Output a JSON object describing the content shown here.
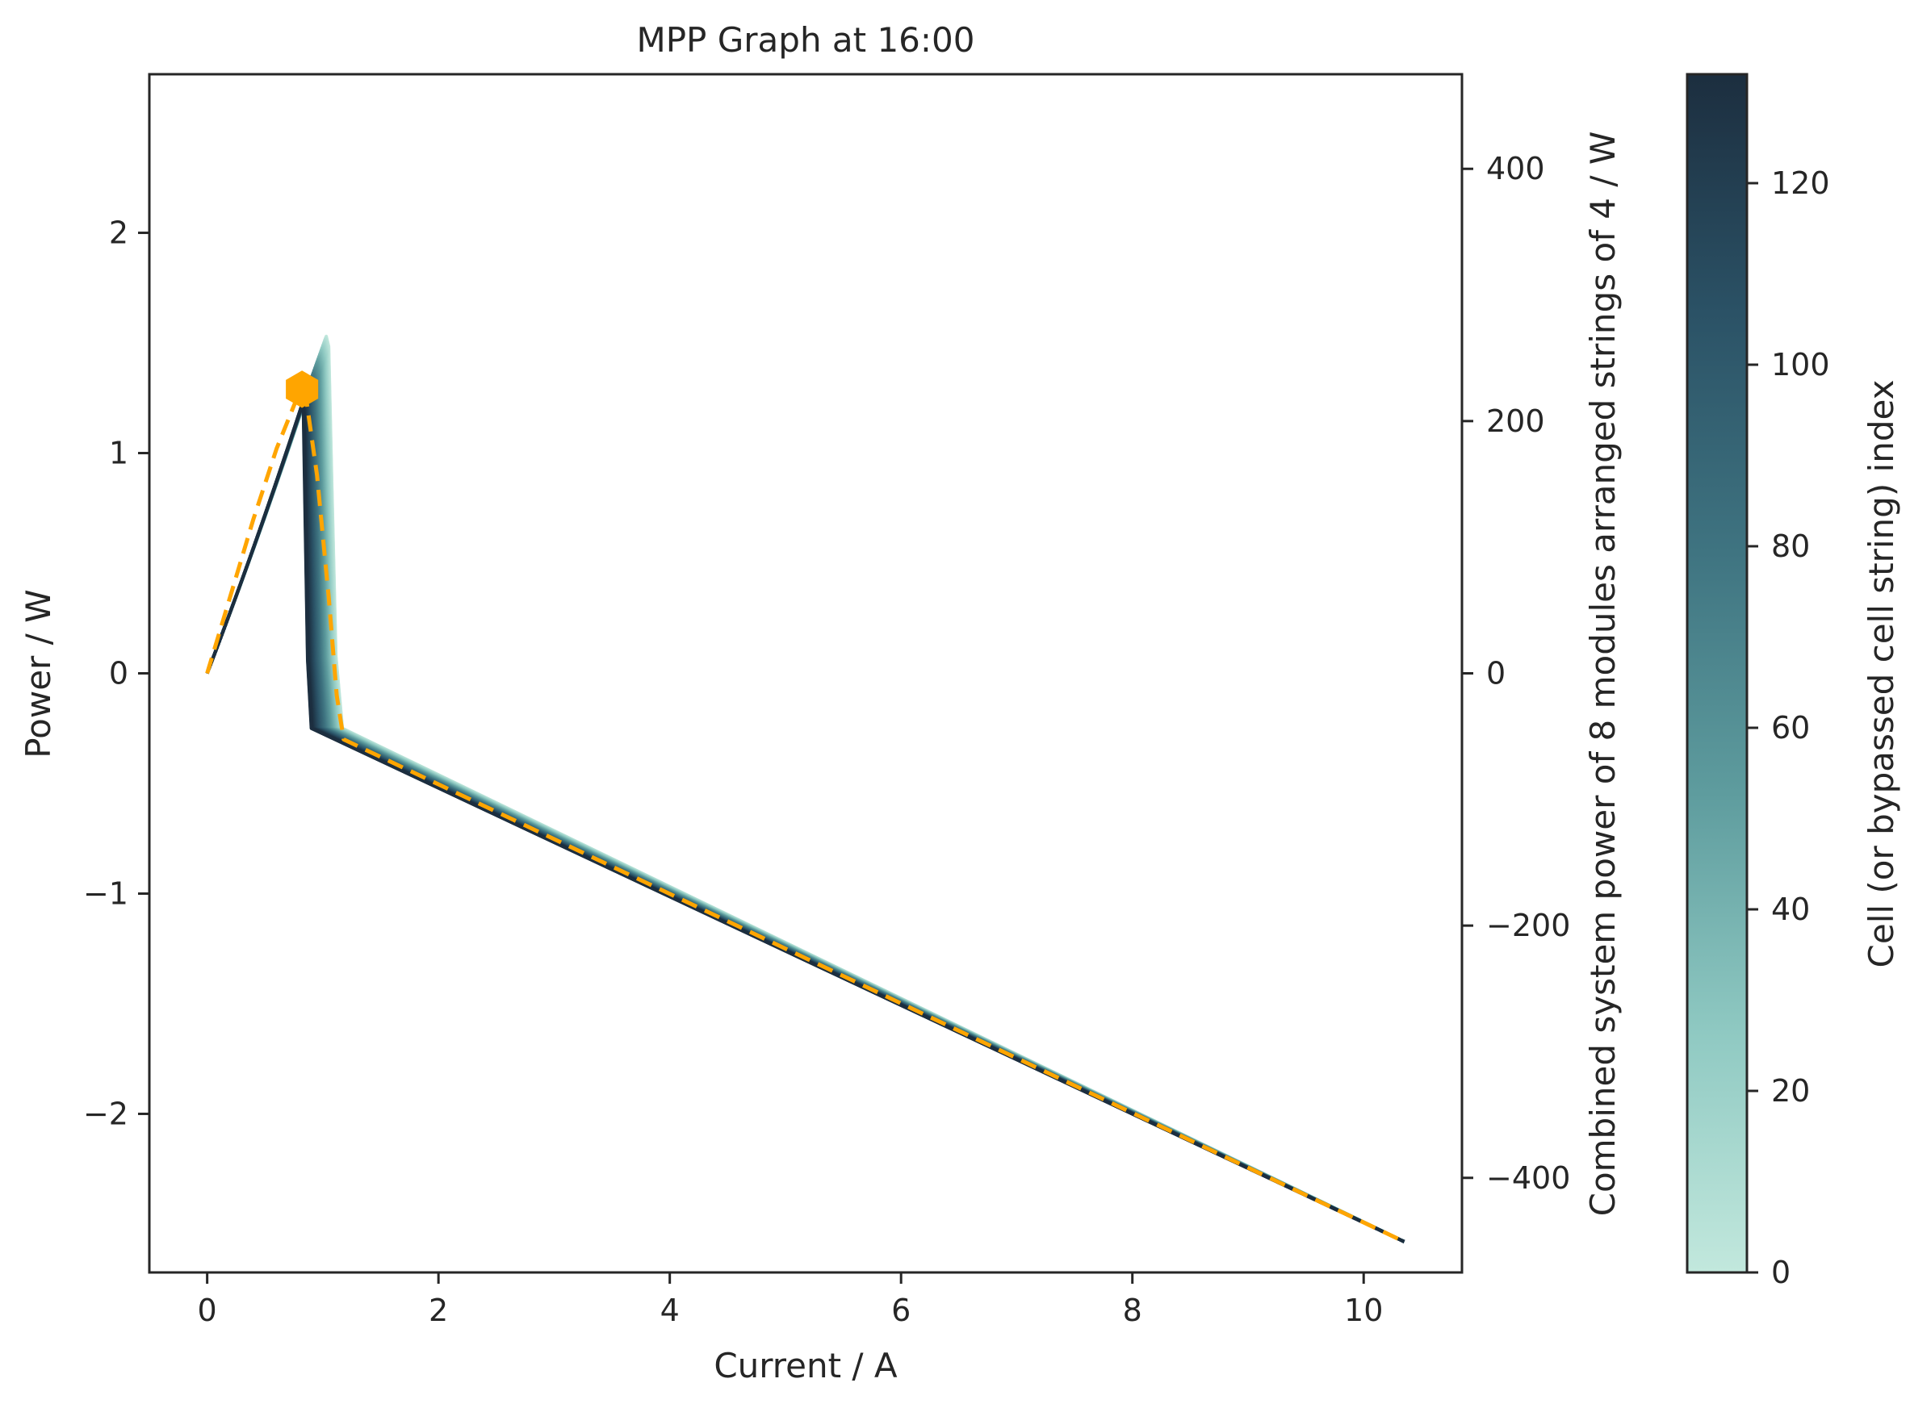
{
  "chart_data": {
    "type": "line",
    "title": "MPP Graph at 16:00",
    "xlabel": "Current / A",
    "ylabel": "Power / W",
    "ylabel_right": "Combined system power of 8 modules arranged strings of 4 / W",
    "colorbar_label": "Cell (or bypassed cell string) index",
    "xlim": [
      -0.5,
      10.85
    ],
    "ylim": [
      -2.72,
      2.72
    ],
    "ylim_right": [
      -475,
      475
    ],
    "x_ticks": [
      0,
      2,
      4,
      6,
      8,
      10
    ],
    "y_ticks": [
      -2,
      -1,
      0,
      1,
      2
    ],
    "y_right_ticks": [
      -400,
      -200,
      0,
      200,
      400
    ],
    "colorbar_range": [
      0,
      132
    ],
    "colorbar_ticks": [
      0,
      20,
      40,
      60,
      80,
      100,
      120
    ],
    "colormap": [
      "#c2e8dd",
      "#8fc9c2",
      "#5e9c9e",
      "#3f7481",
      "#2b5266",
      "#1c2e3f"
    ],
    "grid": false,
    "cell_curves": {
      "count": 133,
      "index_range": [
        0,
        132
      ],
      "peak_current_range": [
        0.82,
        1.03
      ],
      "peak_power_range": [
        1.22,
        1.53
      ],
      "knee_current_range": [
        0.9,
        1.17
      ],
      "knee_power": -0.25,
      "end": [
        10.35,
        -2.58
      ]
    },
    "series": [
      {
        "style": "dashed",
        "color": "#ffa500",
        "x": [
          0,
          0.2,
          0.4,
          0.6,
          0.8,
          0.85,
          0.95,
          1.05,
          1.12,
          1.18,
          10.35
        ],
        "y": [
          0,
          0.35,
          0.7,
          1.02,
          1.28,
          1.27,
          0.9,
          0.35,
          -0.1,
          -0.3,
          -2.58
        ]
      }
    ],
    "annotations": [
      {
        "type": "marker",
        "shape": "hexagon",
        "color": "#ffa500",
        "x": 0.82,
        "y": 1.29
      }
    ]
  }
}
